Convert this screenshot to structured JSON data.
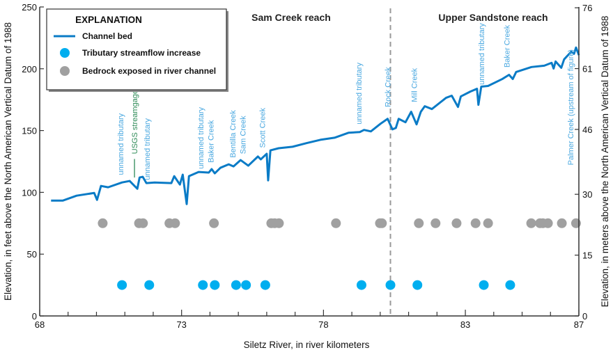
{
  "chart_data": {
    "type": "line",
    "xlabel": "Siletz River, in river kilometers",
    "ylabel": "Elevation, in feet above the North American Vertical Datum of 1988",
    "y2label": "Elevation, in meters above the North American Vertical Datum of 1988",
    "xlim": [
      68,
      87
    ],
    "ylim": [
      0,
      250
    ],
    "x_ticks": [
      68,
      73,
      78,
      83,
      87
    ],
    "x_minor_tick_step": 1,
    "y_ticks": [
      0,
      50,
      100,
      150,
      200,
      250
    ],
    "y2_ticks_meters": [
      0,
      15,
      30,
      46,
      61,
      76
    ],
    "grid": false,
    "legend": {
      "title": "EXPLANATION",
      "placement": "top-left",
      "entries": [
        "Channel bed",
        "Tributary streamflow increase",
        "Bedrock exposed in river channel"
      ]
    },
    "reach_labels": [
      {
        "text": "Sam Creek reach",
        "x": 76.2
      },
      {
        "text": "Upper Sandstone reach",
        "x": 83.4
      }
    ],
    "reach_divider_x": 80.36,
    "series": [
      {
        "name": "Channel bed",
        "type": "line",
        "color": "#0a7bc6",
        "points": [
          [
            68.4,
            93.3
          ],
          [
            68.81,
            93.3
          ],
          [
            69.3,
            97.3
          ],
          [
            69.92,
            99.5
          ],
          [
            70.02,
            93.9
          ],
          [
            70.16,
            105.2
          ],
          [
            70.41,
            104.1
          ],
          [
            70.9,
            108.0
          ],
          [
            71.17,
            109.2
          ],
          [
            71.44,
            102.9
          ],
          [
            71.52,
            112.0
          ],
          [
            71.63,
            112.6
          ],
          [
            71.76,
            107.5
          ],
          [
            72.05,
            108.0
          ],
          [
            72.64,
            107.5
          ],
          [
            72.74,
            113.1
          ],
          [
            72.94,
            106.3
          ],
          [
            73.04,
            114.3
          ],
          [
            73.18,
            90.5
          ],
          [
            73.26,
            113.1
          ],
          [
            73.6,
            116.5
          ],
          [
            73.96,
            116.0
          ],
          [
            74.06,
            118.8
          ],
          [
            74.17,
            115.4
          ],
          [
            74.37,
            119.9
          ],
          [
            74.66,
            122.7
          ],
          [
            74.83,
            121.0
          ],
          [
            75.08,
            126.1
          ],
          [
            75.35,
            121.6
          ],
          [
            75.69,
            129.0
          ],
          [
            75.79,
            126.7
          ],
          [
            76.0,
            131.2
          ],
          [
            76.05,
            109.7
          ],
          [
            76.13,
            134.0
          ],
          [
            76.42,
            135.7
          ],
          [
            76.91,
            136.9
          ],
          [
            77.4,
            139.8
          ],
          [
            77.89,
            142.5
          ],
          [
            78.39,
            144.2
          ],
          [
            78.88,
            148.2
          ],
          [
            79.28,
            148.8
          ],
          [
            79.43,
            150.5
          ],
          [
            79.67,
            149.3
          ],
          [
            80.01,
            155.5
          ],
          [
            80.26,
            159.5
          ],
          [
            80.43,
            151.0
          ],
          [
            80.55,
            152.1
          ],
          [
            80.65,
            159.5
          ],
          [
            80.89,
            156.7
          ],
          [
            81.09,
            165.2
          ],
          [
            81.28,
            155.0
          ],
          [
            81.43,
            165.2
          ],
          [
            81.57,
            169.7
          ],
          [
            81.82,
            167.4
          ],
          [
            82.32,
            176.5
          ],
          [
            82.52,
            178.2
          ],
          [
            82.74,
            169.1
          ],
          [
            82.84,
            177.6
          ],
          [
            83.18,
            181.6
          ],
          [
            83.41,
            183.8
          ],
          [
            83.46,
            170.8
          ],
          [
            83.56,
            185.5
          ],
          [
            83.8,
            186.1
          ],
          [
            84.3,
            191.7
          ],
          [
            84.54,
            195.1
          ],
          [
            84.67,
            191.7
          ],
          [
            84.79,
            197.4
          ],
          [
            85.33,
            201.4
          ],
          [
            85.78,
            202.5
          ],
          [
            86.04,
            204.8
          ],
          [
            86.11,
            200.2
          ],
          [
            86.18,
            205.9
          ],
          [
            86.38,
            200.8
          ],
          [
            86.48,
            207.6
          ],
          [
            86.73,
            213.8
          ],
          [
            86.83,
            212.1
          ],
          [
            86.9,
            217.2
          ],
          [
            87.0,
            211.0
          ]
        ]
      },
      {
        "name": "Tributary streamflow increase",
        "type": "scatter",
        "color": "#00aeef",
        "y": 25,
        "x": [
          70.9,
          71.86,
          73.75,
          74.17,
          74.92,
          75.27,
          75.95,
          79.34,
          80.36,
          81.31,
          83.65,
          84.58
        ]
      },
      {
        "name": "Bedrock exposed in river channel",
        "type": "scatter",
        "color": "#a0a0a0",
        "y": 75,
        "x": [
          70.22,
          71.5,
          71.64,
          72.57,
          72.77,
          74.14,
          76.16,
          76.28,
          76.43,
          78.44,
          79.99,
          80.06,
          81.36,
          81.95,
          82.69,
          83.36,
          83.8,
          85.32,
          85.63,
          85.73,
          85.91,
          86.4,
          86.9
        ]
      }
    ],
    "annotations": [
      {
        "text": "unnamed tributary",
        "x": 70.85,
        "y": 114,
        "color": "#4aa8e0"
      },
      {
        "text": "USGS streamgage",
        "x": 71.34,
        "y": 131,
        "color": "#2e8b57",
        "leader": [
          112,
          127
        ]
      },
      {
        "text": "unnamed tributary",
        "x": 71.78,
        "y": 110,
        "color": "#4aa8e0"
      },
      {
        "text": "unnamed tributary",
        "x": 73.67,
        "y": 119,
        "color": "#4aa8e0"
      },
      {
        "text": "Baker Creek",
        "x": 74.03,
        "y": 124,
        "color": "#4aa8e0"
      },
      {
        "text": "Bentilla Creek",
        "x": 74.8,
        "y": 128,
        "color": "#4aa8e0"
      },
      {
        "text": "Sam Creek",
        "x": 75.15,
        "y": 131,
        "color": "#4aa8e0"
      },
      {
        "text": "Scott Creek",
        "x": 75.84,
        "y": 136,
        "color": "#4aa8e0"
      },
      {
        "text": "unnamed tributary",
        "x": 79.24,
        "y": 155,
        "color": "#4aa8e0"
      },
      {
        "text": "Rock Creek",
        "x": 80.26,
        "y": 169,
        "color": "#4aa8e0"
      },
      {
        "text": "Mill Creek",
        "x": 81.2,
        "y": 173,
        "color": "#4aa8e0"
      },
      {
        "text": "unnamed tributary",
        "x": 83.56,
        "y": 187,
        "color": "#4aa8e0"
      },
      {
        "text": "Baker Creek",
        "x": 84.46,
        "y": 201,
        "color": "#4aa8e0"
      },
      {
        "text": "Palmer Creek (upstream of figure)",
        "x": 86.71,
        "y": 122,
        "color": "#4aa8e0"
      }
    ]
  }
}
